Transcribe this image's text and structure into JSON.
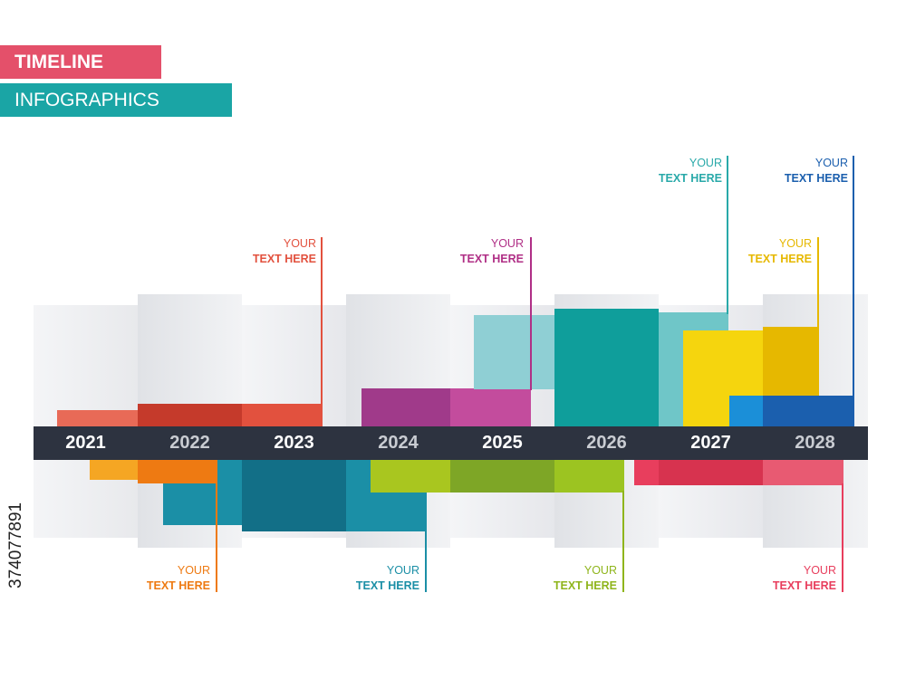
{
  "header": {
    "title": "TIMELINE",
    "subtitle": "INFOGRAPHICS"
  },
  "colors": {
    "title_banner": "#e4506a",
    "subtitle_banner": "#1aa5a5",
    "year_band": "#2d3340",
    "red": "#e2513e",
    "orange": "#f29a1e",
    "teal_dark": "#1b8fa6",
    "purple": "#a03a8a",
    "green": "#9cc421",
    "aqua": "#0f9e9b",
    "yellow": "#f5c518",
    "blue": "#1b6bb8",
    "pink": "#e83e5d"
  },
  "years": [
    {
      "label": "2021",
      "color": "#ffffff"
    },
    {
      "label": "2022",
      "color": "#c9ccd2"
    },
    {
      "label": "2023",
      "color": "#ffffff"
    },
    {
      "label": "2024",
      "color": "#c9ccd2"
    },
    {
      "label": "2025",
      "color": "#ffffff"
    },
    {
      "label": "2026",
      "color": "#c9ccd2"
    },
    {
      "label": "2027",
      "color": "#ffffff"
    },
    {
      "label": "2028",
      "color": "#c9ccd2"
    }
  ],
  "callouts": [
    {
      "line1": "YOUR",
      "line2": "TEXT HERE",
      "color": "#e2513e"
    },
    {
      "line1": "YOUR",
      "line2": "TEXT HERE",
      "color": "#b02f86"
    },
    {
      "line1": "YOUR",
      "line2": "TEXT HERE",
      "color": "#29a9a9"
    },
    {
      "line1": "YOUR",
      "line2": "TEXT HERE",
      "color": "#e6b800"
    },
    {
      "line1": "YOUR",
      "line2": "TEXT HERE",
      "color": "#1b5fae"
    },
    {
      "line1": "YOUR",
      "line2": "TEXT HERE",
      "color": "#ee7a12"
    },
    {
      "line1": "YOUR",
      "line2": "TEXT HERE",
      "color": "#1b8fa6"
    },
    {
      "line1": "YOUR",
      "line2": "TEXT HERE",
      "color": "#8fb51c"
    },
    {
      "line1": "YOUR",
      "line2": "TEXT HERE",
      "color": "#e83e5d"
    }
  ],
  "side_id": "374077891"
}
